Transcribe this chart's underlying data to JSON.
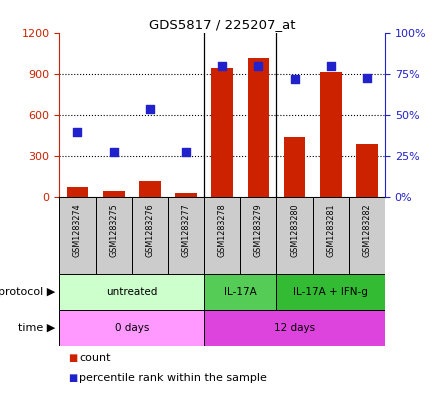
{
  "title": "GDS5817 / 225207_at",
  "samples": [
    "GSM1283274",
    "GSM1283275",
    "GSM1283276",
    "GSM1283277",
    "GSM1283278",
    "GSM1283279",
    "GSM1283280",
    "GSM1283281",
    "GSM1283282"
  ],
  "counts": [
    75,
    50,
    120,
    30,
    950,
    1020,
    440,
    920,
    390
  ],
  "percentiles": [
    40,
    28,
    54,
    28,
    80,
    80,
    72,
    80,
    73
  ],
  "ylim_left": [
    0,
    1200
  ],
  "ylim_right": [
    0,
    100
  ],
  "yticks_left": [
    0,
    300,
    600,
    900,
    1200
  ],
  "yticks_right": [
    0,
    25,
    50,
    75,
    100
  ],
  "bar_color": "#cc2200",
  "dot_color": "#2222cc",
  "protocol_groups": [
    {
      "label": "untreated",
      "start": 0,
      "end": 4,
      "color": "#ccffcc"
    },
    {
      "label": "IL-17A",
      "start": 4,
      "end": 6,
      "color": "#55cc55"
    },
    {
      "label": "IL-17A + IFN-g",
      "start": 6,
      "end": 9,
      "color": "#33bb33"
    }
  ],
  "time_groups": [
    {
      "label": "0 days",
      "start": 0,
      "end": 4,
      "color": "#ff99ff"
    },
    {
      "label": "12 days",
      "start": 4,
      "end": 9,
      "color": "#dd44dd"
    }
  ],
  "protocol_label": "protocol",
  "time_label": "time",
  "legend_count": "count",
  "legend_percentile": "percentile rank within the sample",
  "grid_dotted_vals": [
    300,
    600,
    900
  ],
  "left_axis_color": "#cc2200",
  "right_axis_color": "#2222cc",
  "sample_box_color": "#cccccc",
  "fig_width": 4.4,
  "fig_height": 3.93,
  "dpi": 100
}
